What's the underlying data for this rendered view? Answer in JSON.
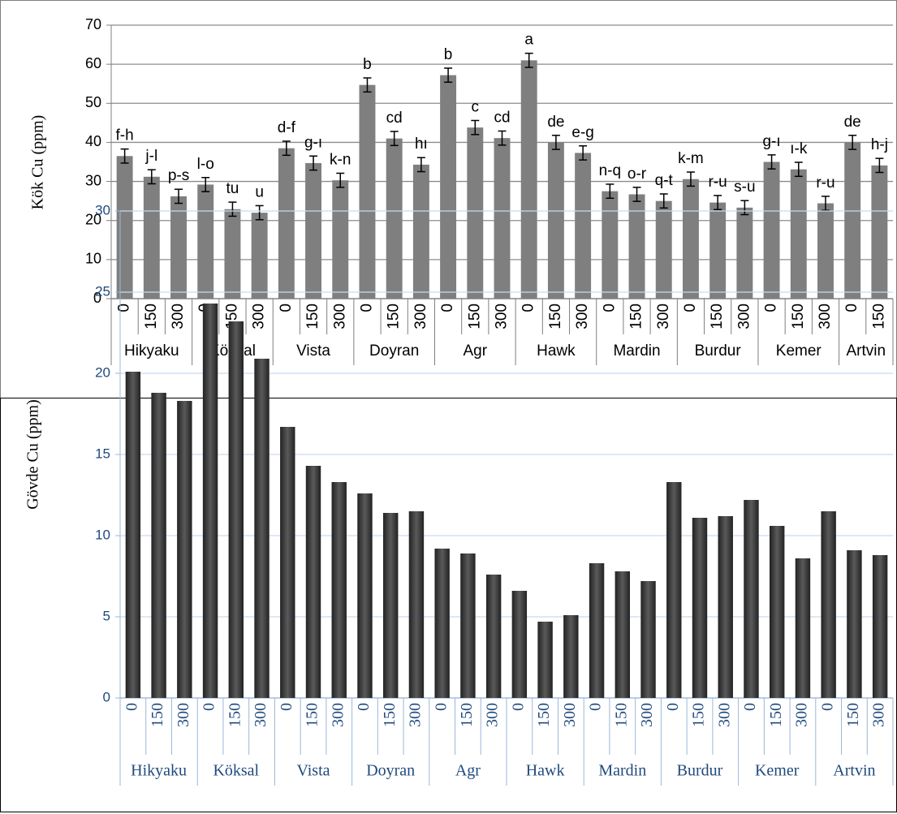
{
  "chart_data": [
    {
      "type": "bar",
      "ylabel": "Kök Cu (ppm)",
      "color": "#7f7f7f",
      "grid": true,
      "ylim": [
        0,
        70
      ],
      "yticks": [
        0,
        10,
        20,
        30,
        40,
        50,
        60,
        70
      ],
      "groups": [
        {
          "name": "Hikyaku",
          "categories": [
            "0",
            "150",
            "300"
          ],
          "values": [
            36.5,
            31.2,
            26.2
          ],
          "errors": [
            1.8,
            1.8,
            1.8
          ],
          "letters": [
            "f-h",
            "j-l",
            "p-s"
          ]
        },
        {
          "name": "Köksal",
          "categories": [
            "0",
            "150",
            "300"
          ],
          "values": [
            29.2,
            22.9,
            22.0
          ],
          "errors": [
            1.8,
            1.8,
            1.8
          ],
          "letters": [
            "l-o",
            "tu",
            "u"
          ]
        },
        {
          "name": "Vista",
          "categories": [
            "0",
            "150",
            "300"
          ],
          "values": [
            38.5,
            34.7,
            30.3
          ],
          "errors": [
            1.8,
            1.8,
            1.8
          ],
          "letters": [
            "d-f",
            "g-ı",
            "k-n"
          ]
        },
        {
          "name": "Doyran",
          "categories": [
            "0",
            "150",
            "300"
          ],
          "values": [
            54.7,
            41.0,
            34.3
          ],
          "errors": [
            1.8,
            1.8,
            1.8
          ],
          "letters": [
            "b",
            "cd",
            "hı"
          ]
        },
        {
          "name": "Agr",
          "categories": [
            "0",
            "150",
            "300"
          ],
          "values": [
            57.2,
            43.8,
            41.1
          ],
          "errors": [
            1.8,
            1.8,
            1.8
          ],
          "letters": [
            "b",
            "c",
            "cd"
          ]
        },
        {
          "name": "Hawk",
          "categories": [
            "0",
            "150",
            "300"
          ],
          "values": [
            61.0,
            40.0,
            37.3
          ],
          "errors": [
            1.8,
            1.8,
            1.8
          ],
          "letters": [
            "a",
            "de",
            "e-g"
          ]
        },
        {
          "name": "Mardin",
          "categories": [
            "0",
            "150",
            "300"
          ],
          "values": [
            27.5,
            26.7,
            25.0
          ],
          "errors": [
            1.8,
            1.8,
            1.8
          ],
          "letters": [
            "n-q",
            "o-r",
            "q-t"
          ]
        },
        {
          "name": "Burdur",
          "categories": [
            "0",
            "150",
            "300"
          ],
          "values": [
            30.6,
            24.6,
            23.3
          ],
          "errors": [
            1.8,
            1.8,
            1.8
          ],
          "letters": [
            "k-m",
            "r-u",
            "s-u"
          ]
        },
        {
          "name": "Kemer",
          "categories": [
            "0",
            "150",
            "300"
          ],
          "values": [
            35.0,
            33.1,
            24.4
          ],
          "errors": [
            1.8,
            1.8,
            1.8
          ],
          "letters": [
            "g-ı",
            "ı-k",
            "r-u"
          ]
        },
        {
          "name": "Artvin",
          "categories": [
            "0",
            "150"
          ],
          "values": [
            40.0,
            34.1
          ],
          "errors": [
            1.8,
            1.8
          ],
          "letters": [
            "de",
            "h-j"
          ]
        }
      ]
    },
    {
      "type": "bar",
      "ylabel": "Gövde Cu (ppm)",
      "color": "#404040",
      "grid": true,
      "ylim": [
        0,
        30
      ],
      "yticks": [
        0,
        5,
        10,
        15,
        20,
        25,
        30
      ],
      "groups": [
        {
          "name": "Hikyaku",
          "categories": [
            "0",
            "150",
            "300"
          ],
          "values": [
            20.1,
            18.8,
            18.3
          ]
        },
        {
          "name": "Köksal",
          "categories": [
            "0",
            "150",
            "300"
          ],
          "values": [
            24.3,
            23.2,
            20.9
          ]
        },
        {
          "name": "Vista",
          "categories": [
            "0",
            "150",
            "300"
          ],
          "values": [
            16.7,
            14.3,
            13.3
          ]
        },
        {
          "name": "Doyran",
          "categories": [
            "0",
            "150",
            "300"
          ],
          "values": [
            12.6,
            11.4,
            11.5
          ]
        },
        {
          "name": "Agr",
          "categories": [
            "0",
            "150",
            "300"
          ],
          "values": [
            9.2,
            8.9,
            7.6
          ]
        },
        {
          "name": "Hawk",
          "categories": [
            "0",
            "150",
            "300"
          ],
          "values": [
            6.6,
            4.7,
            5.1
          ]
        },
        {
          "name": "Mardin",
          "categories": [
            "0",
            "150",
            "300"
          ],
          "values": [
            8.3,
            7.8,
            7.2
          ]
        },
        {
          "name": "Burdur",
          "categories": [
            "0",
            "150",
            "300"
          ],
          "values": [
            13.3,
            11.1,
            11.2
          ]
        },
        {
          "name": "Kemer",
          "categories": [
            "0",
            "150",
            "300"
          ],
          "values": [
            12.2,
            10.6,
            8.6
          ]
        },
        {
          "name": "Artvin",
          "categories": [
            "0",
            "150",
            "300"
          ],
          "values": [
            11.5,
            9.1,
            8.8
          ]
        }
      ]
    }
  ]
}
